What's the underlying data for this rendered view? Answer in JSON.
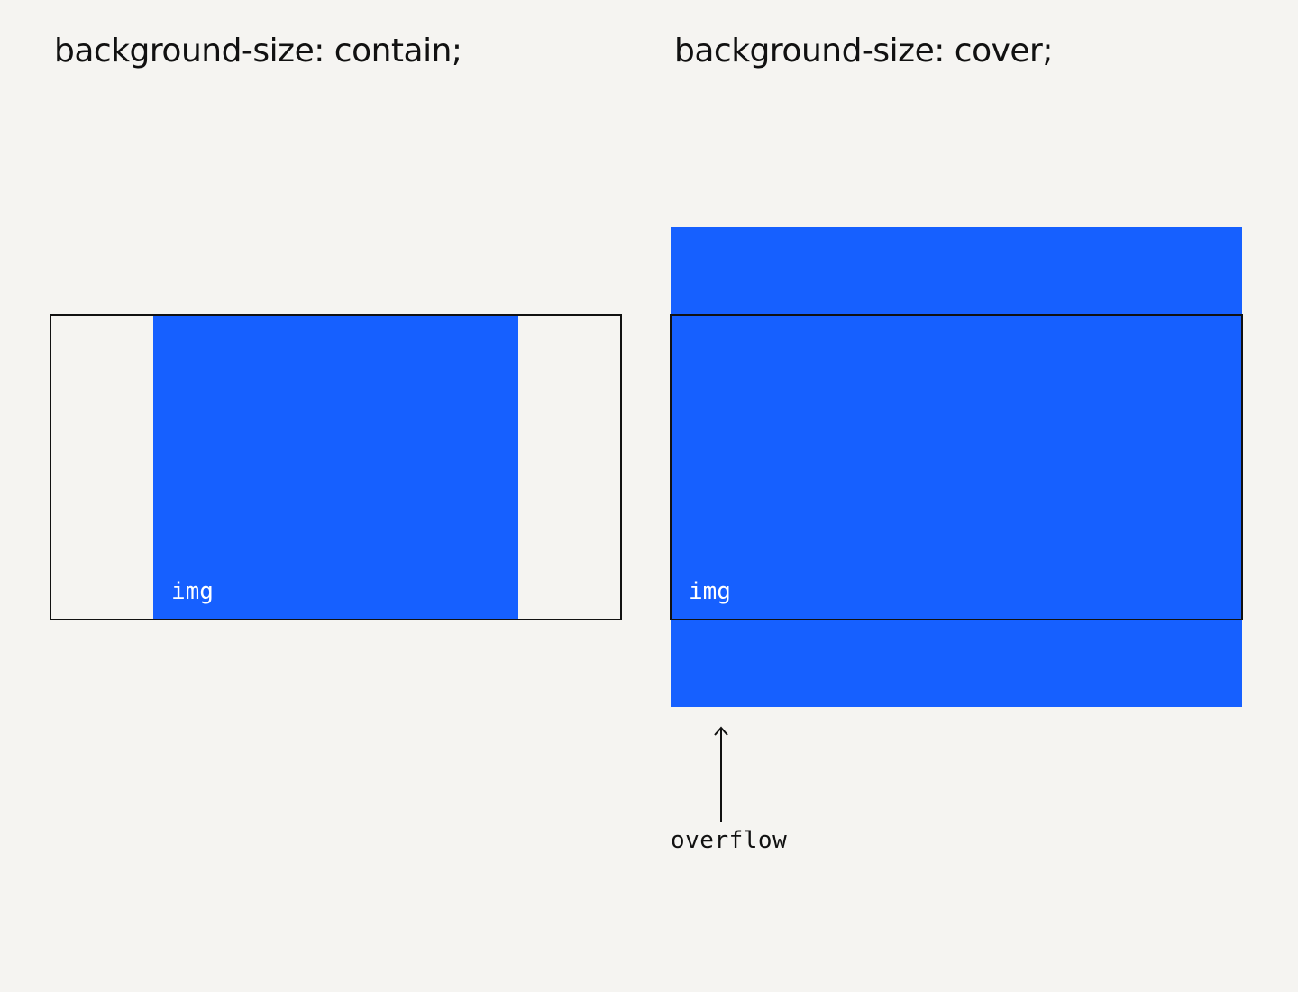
{
  "contain": {
    "heading": "background-size: contain;",
    "img_label": "img"
  },
  "cover": {
    "heading": "background-size: cover;",
    "img_label": "img",
    "overflow_label": "overflow"
  },
  "colors": {
    "background": "#f5f4f1",
    "image_fill": "#1660ff",
    "frame_border": "#111111",
    "img_label_text": "#ffffff",
    "annotation_text": "#111111"
  },
  "icons": {
    "overflow_arrow": "arrow-up-icon"
  }
}
